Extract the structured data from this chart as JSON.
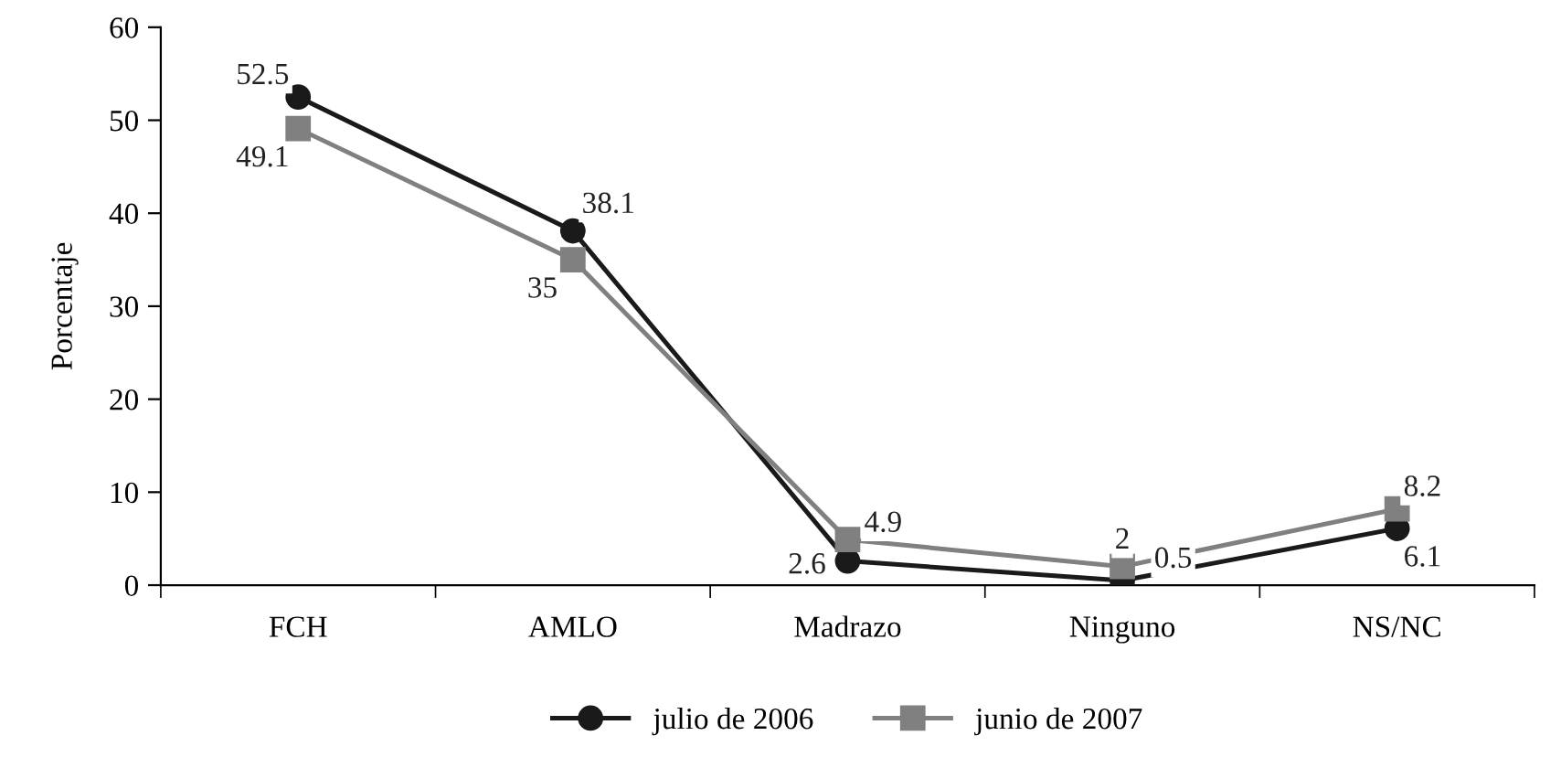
{
  "chart_data": {
    "type": "line",
    "ylabel": "Porcentaje",
    "categories": [
      "FCH",
      "AMLO",
      "Madrazo",
      "Ninguno",
      "NS/NC"
    ],
    "series": [
      {
        "name": "julio de 2006",
        "color": "#1a1a1a",
        "marker": "circle",
        "values": [
          52.5,
          38.1,
          2.6,
          0.5,
          6.1
        ]
      },
      {
        "name": "junio de 2007",
        "color": "#808080",
        "marker": "square",
        "values": [
          49.1,
          35,
          4.9,
          2,
          8.2
        ]
      }
    ],
    "ylim": [
      0,
      60
    ],
    "yticks": [
      0,
      10,
      20,
      30,
      40,
      50,
      60
    ],
    "grid": false,
    "legend": "bottom",
    "data_labels": true,
    "line_style": "solid"
  }
}
